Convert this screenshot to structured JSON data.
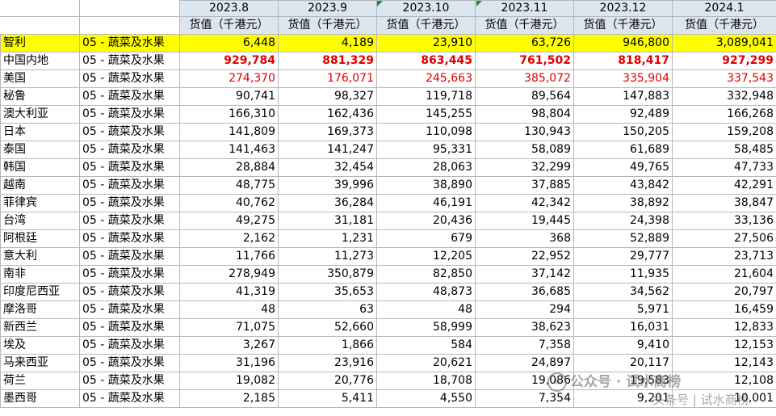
{
  "header": {
    "months": [
      "2023.8",
      "2023.9",
      "2023.10",
      "2023.11",
      "2023.12",
      "2024.1"
    ],
    "unit_label": "货值（千港元）"
  },
  "rows": [
    {
      "country": "智利",
      "category": "05 - 蔬菜及水果",
      "values": [
        "6,448",
        "4,189",
        "23,910",
        "63,726",
        "946,800",
        "3,089,041"
      ]
    },
    {
      "country": "中国内地",
      "category": "05 - 蔬菜及水果",
      "values": [
        "929,784",
        "881,329",
        "863,445",
        "761,502",
        "818,417",
        "927,299"
      ]
    },
    {
      "country": "美国",
      "category": "05 - 蔬菜及水果",
      "values": [
        "274,370",
        "176,071",
        "245,663",
        "385,072",
        "335,904",
        "337,543"
      ]
    },
    {
      "country": "秘鲁",
      "category": "05 - 蔬菜及水果",
      "values": [
        "90,741",
        "98,327",
        "119,718",
        "89,564",
        "147,883",
        "332,948"
      ]
    },
    {
      "country": "澳大利亚",
      "category": "05 - 蔬菜及水果",
      "values": [
        "166,310",
        "162,436",
        "145,255",
        "98,804",
        "92,489",
        "166,268"
      ]
    },
    {
      "country": "日本",
      "category": "05 - 蔬菜及水果",
      "values": [
        "141,809",
        "169,373",
        "110,098",
        "130,943",
        "150,205",
        "159,208"
      ]
    },
    {
      "country": "泰国",
      "category": "05 - 蔬菜及水果",
      "values": [
        "141,463",
        "141,247",
        "95,331",
        "58,089",
        "61,689",
        "58,485"
      ]
    },
    {
      "country": "韩国",
      "category": "05 - 蔬菜及水果",
      "values": [
        "28,884",
        "32,454",
        "28,063",
        "32,299",
        "49,765",
        "47,733"
      ]
    },
    {
      "country": "越南",
      "category": "05 - 蔬菜及水果",
      "values": [
        "48,775",
        "39,996",
        "38,890",
        "37,885",
        "43,842",
        "42,291"
      ]
    },
    {
      "country": "菲律宾",
      "category": "05 - 蔬菜及水果",
      "values": [
        "40,762",
        "36,284",
        "46,191",
        "42,342",
        "38,892",
        "38,847"
      ]
    },
    {
      "country": "台湾",
      "category": "05 - 蔬菜及水果",
      "values": [
        "49,275",
        "31,181",
        "20,436",
        "19,445",
        "24,398",
        "33,136"
      ]
    },
    {
      "country": "阿根廷",
      "category": "05 - 蔬菜及水果",
      "values": [
        "2,162",
        "1,231",
        "679",
        "368",
        "52,889",
        "27,506"
      ]
    },
    {
      "country": "意大利",
      "category": "05 - 蔬菜及水果",
      "values": [
        "11,766",
        "11,273",
        "12,205",
        "22,952",
        "29,777",
        "23,713"
      ]
    },
    {
      "country": "南非",
      "category": "05 - 蔬菜及水果",
      "values": [
        "278,949",
        "350,879",
        "82,850",
        "37,142",
        "11,935",
        "21,604"
      ]
    },
    {
      "country": "印度尼西亚",
      "category": "05 - 蔬菜及水果",
      "values": [
        "41,319",
        "35,653",
        "48,873",
        "36,685",
        "34,562",
        "20,797"
      ]
    },
    {
      "country": "摩洛哥",
      "category": "05 - 蔬菜及水果",
      "values": [
        "48",
        "63",
        "48",
        "294",
        "5,971",
        "16,459"
      ]
    },
    {
      "country": "新西兰",
      "category": "05 - 蔬菜及水果",
      "values": [
        "71,075",
        "52,660",
        "58,999",
        "38,623",
        "16,031",
        "12,833"
      ]
    },
    {
      "country": "埃及",
      "category": "05 - 蔬菜及水果",
      "values": [
        "3,267",
        "1,866",
        "584",
        "7,358",
        "9,410",
        "12,153"
      ]
    },
    {
      "country": "马来西亚",
      "category": "05 - 蔬菜及水果",
      "values": [
        "31,196",
        "23,916",
        "20,621",
        "24,897",
        "20,117",
        "12,143"
      ]
    },
    {
      "country": "荷兰",
      "category": "05 - 蔬菜及水果",
      "values": [
        "19,082",
        "20,776",
        "18,708",
        "19,086",
        "19,583",
        "12,108"
      ]
    },
    {
      "country": "墨西哥",
      "category": "05 - 蔬菜及水果",
      "values": [
        "2,185",
        "5,411",
        "4,550",
        "7,354",
        "9,201",
        "10,001"
      ]
    }
  ],
  "colors": {
    "header_bg": "#dce6f1",
    "highlight_row": "#ffff00",
    "red_text": "#e00000",
    "grid": "#b7b7b7",
    "comment_marker": "#1f8a3e"
  },
  "watermark": {
    "line1": "公众号 · 试水商榜",
    "line2": "头条号 | 试水商榜"
  }
}
